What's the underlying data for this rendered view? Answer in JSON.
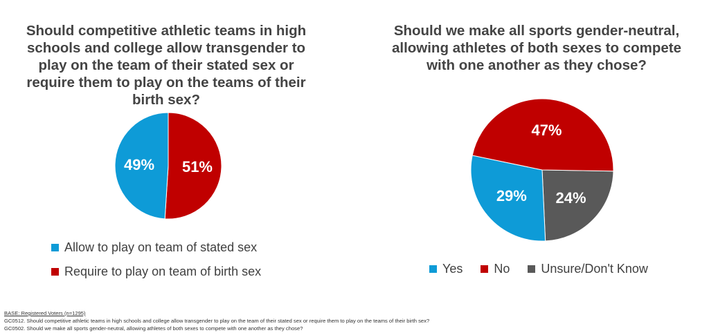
{
  "colors": {
    "blue": "#0E9BD7",
    "red": "#C00000",
    "gray": "#595959"
  },
  "chart_data": [
    {
      "type": "pie",
      "title": "Should competitive athletic teams in high schools and college allow transgender to play on the team of their stated sex or require them to play on the teams of their birth sex?",
      "slices": [
        {
          "label": "Require to play on team of birth sex",
          "value": 51,
          "display": "51%",
          "color": "#C00000"
        },
        {
          "label": "Allow to play on team of stated sex",
          "value": 49,
          "display": "49%",
          "color": "#0E9BD7"
        }
      ],
      "legend": [
        "Allow to play on team of stated sex",
        "Require to play on team of birth sex"
      ],
      "legend_placement": "bottom"
    },
    {
      "type": "pie",
      "title": "Should we make all sports gender-neutral, allowing athletes of both sexes to compete with one another as they chose?",
      "slices": [
        {
          "label": "Unsure/Don't Know",
          "value": 24,
          "display": "24%",
          "color": "#595959"
        },
        {
          "label": "Yes",
          "value": 29,
          "display": "29%",
          "color": "#0E9BD7"
        },
        {
          "label": "No",
          "value": 47,
          "display": "47%",
          "color": "#C00000"
        }
      ],
      "legend": [
        "Yes",
        "No",
        "Unsure/Don't Know"
      ],
      "legend_placement": "bottom"
    }
  ],
  "footer": {
    "base": "BASE: Registered Voters (n=1295)",
    "note1": "GC0512. Should competitive athletic teams in high schools and college allow transgender to play on the team of their stated sex or require them to play on the teams of their birth sex?",
    "note2": "GC0502. Should we make all sports gender-neutral, allowing athletes of both sexes to compete with one another as they chose?"
  }
}
